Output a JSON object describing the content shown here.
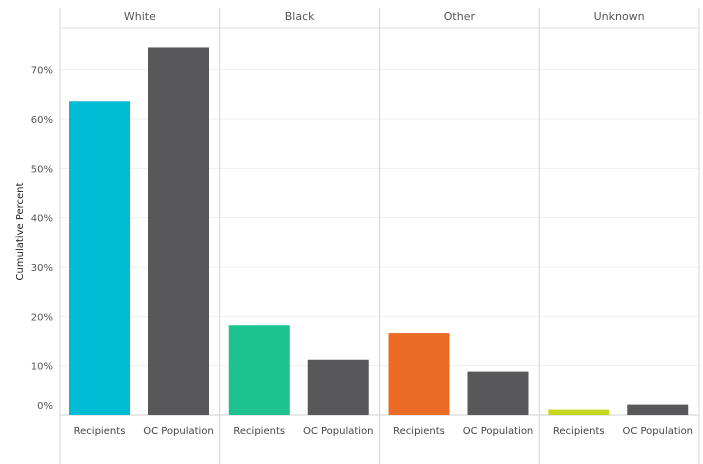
{
  "chart_data": {
    "type": "bar",
    "ylabel": "Cumulative Percent",
    "ylim": [
      0,
      0.75
    ],
    "y_ticks": [
      {
        "value": 0,
        "label": "0%"
      },
      {
        "value": 0.1,
        "label": "10%"
      },
      {
        "value": 0.2,
        "label": "20%"
      },
      {
        "value": 0.3,
        "label": "30%"
      },
      {
        "value": 0.4,
        "label": "40%"
      },
      {
        "value": 0.5,
        "label": "50%"
      },
      {
        "value": 0.6,
        "label": "60%"
      },
      {
        "value": 0.7,
        "label": "70%"
      }
    ],
    "grid": true,
    "panels": [
      {
        "header": "White",
        "bars": [
          {
            "category": "Recipients",
            "value": 0.636,
            "color": "#00BCD4"
          },
          {
            "category": "OC Population",
            "value": 0.745,
            "color": "#58585B"
          }
        ]
      },
      {
        "header": "Black",
        "bars": [
          {
            "category": "Recipients",
            "value": 0.182,
            "color": "#1DC38E"
          },
          {
            "category": "OC Population",
            "value": 0.112,
            "color": "#58585B"
          }
        ]
      },
      {
        "header": "Other",
        "bars": [
          {
            "category": "Recipients",
            "value": 0.166,
            "color": "#EB6A24"
          },
          {
            "category": "OC Population",
            "value": 0.088,
            "color": "#58585B"
          }
        ]
      },
      {
        "header": "Unknown",
        "bars": [
          {
            "category": "Recipients",
            "value": 0.011,
            "color": "#C5D81E"
          },
          {
            "category": "OC Population",
            "value": 0.021,
            "color": "#58585B"
          }
        ]
      }
    ]
  }
}
